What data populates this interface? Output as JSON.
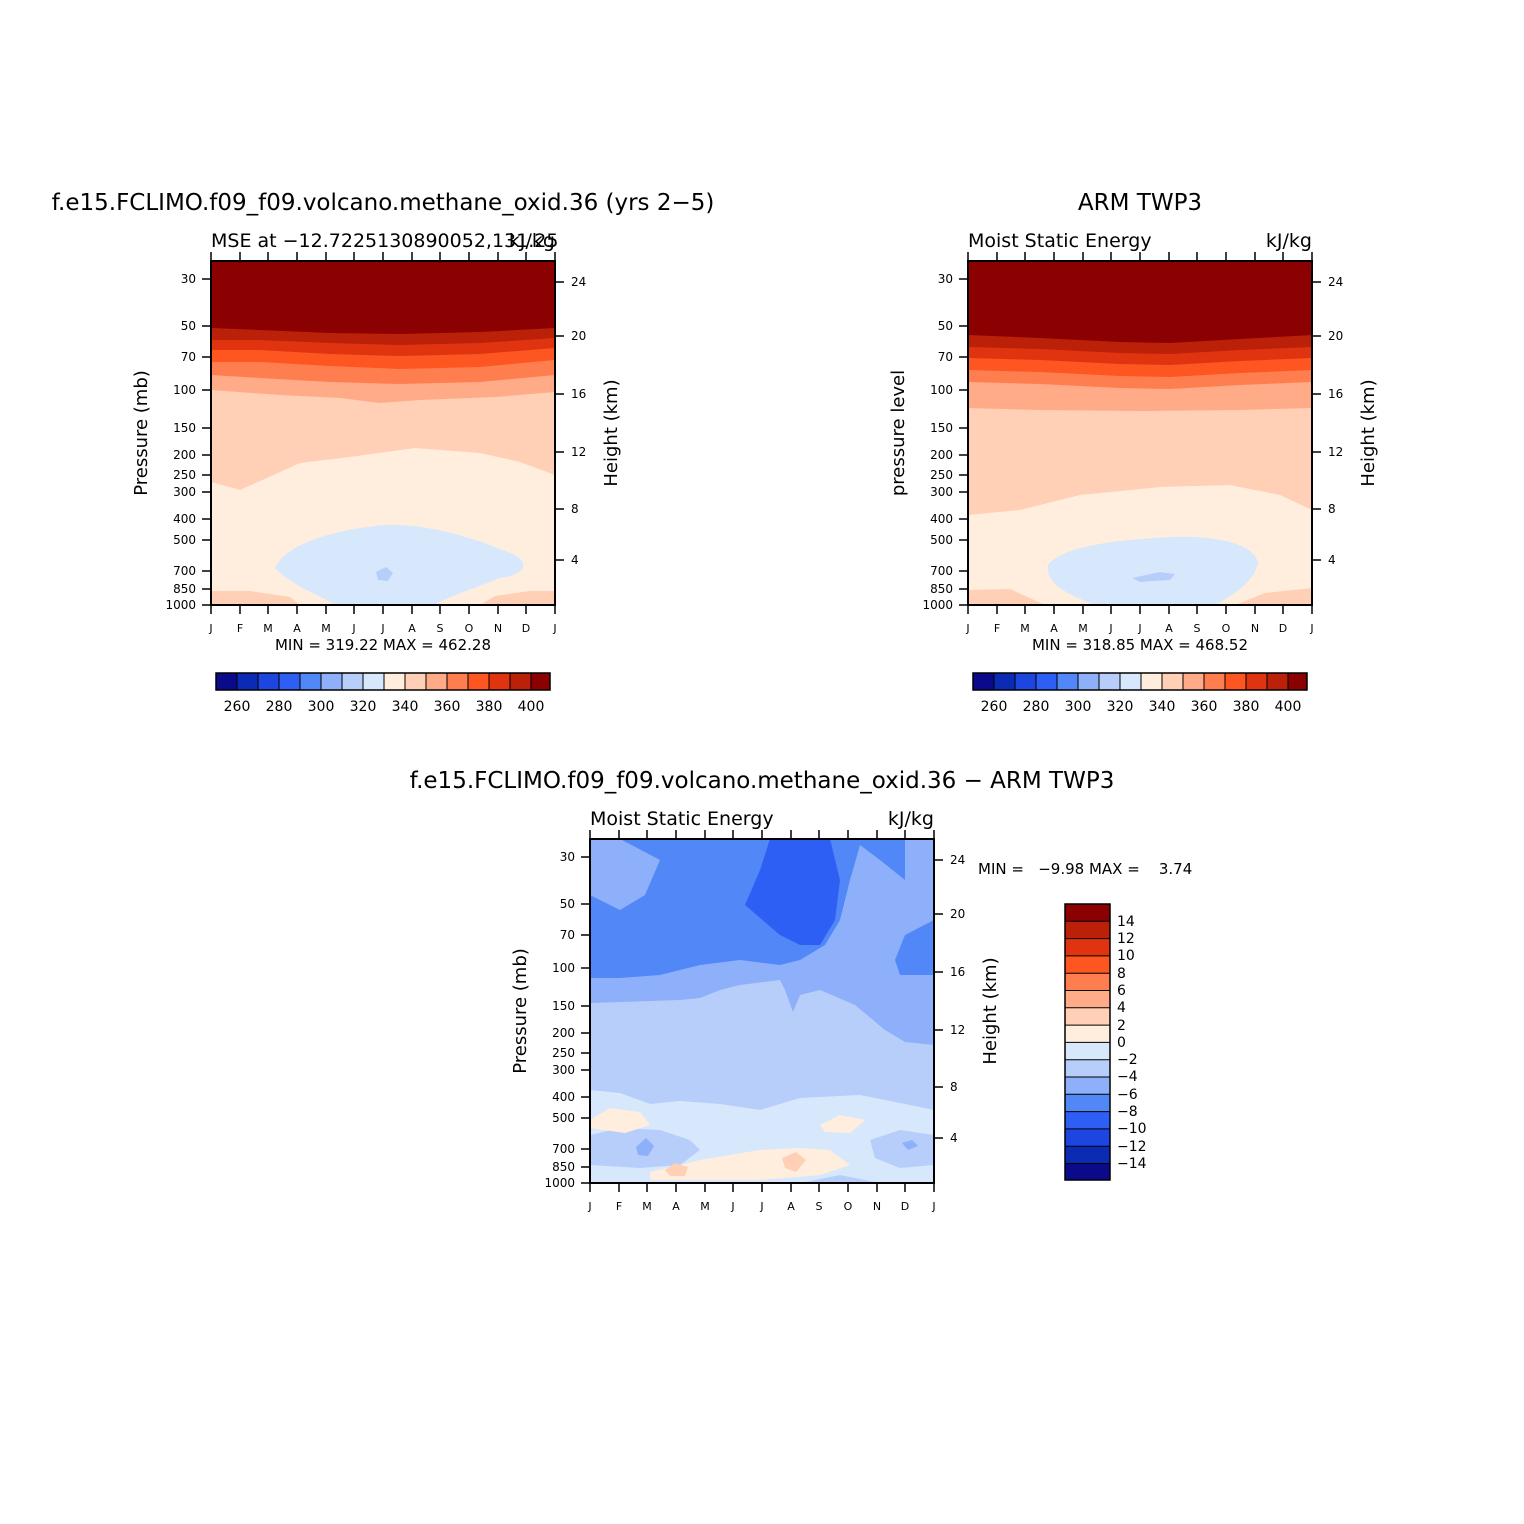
{
  "chart_data": [
    {
      "type": "heatmap",
      "title": "f.e15.FCLIMO.f09_f09.volcano.methane_oxid.36 (yrs 2−5)",
      "left_subtitle": "MSE at −12.7225130890052,131.25",
      "right_subtitle": "kJ/kg",
      "ylabel": "Pressure (mb)",
      "y2label": "Height (km)",
      "stats": "MIN = 319.22 MAX = 462.28",
      "x_ticks": [
        "J",
        "F",
        "M",
        "A",
        "M",
        "J",
        "J",
        "A",
        "S",
        "O",
        "N",
        "D",
        "J"
      ],
      "y_ticks": [
        "30",
        "50",
        "70",
        "100",
        "150",
        "200",
        "250",
        "300",
        "400",
        "500",
        "700",
        "850",
        "1000"
      ],
      "y2_ticks": [
        "24",
        "20",
        "16",
        "12",
        "8",
        "4"
      ],
      "colorbar": {
        "orientation": "horizontal",
        "labels": [
          "260",
          "280",
          "300",
          "320",
          "340",
          "360",
          "380",
          "400"
        ],
        "colors": [
          "#0a0a8a",
          "#0b2bb5",
          "#1d45e0",
          "#2e5ff5",
          "#5287f7",
          "#8eb0fa",
          "#b7cefb",
          "#d8e8fc",
          "#ffeedd",
          "#ffd0b5",
          "#ffab88",
          "#ff7e50",
          "#fd5620",
          "#e03410",
          "#bb2009",
          "#8b0000"
        ]
      }
    },
    {
      "type": "heatmap",
      "title": "ARM TWP3",
      "left_subtitle": "Moist Static Energy",
      "right_subtitle": "kJ/kg",
      "ylabel": "pressure level",
      "y2label": "Height (km)",
      "stats": "MIN = 318.85 MAX = 468.52",
      "x_ticks": [
        "J",
        "F",
        "M",
        "A",
        "M",
        "J",
        "J",
        "A",
        "S",
        "O",
        "N",
        "D",
        "J"
      ],
      "y_ticks": [
        "30",
        "50",
        "70",
        "100",
        "150",
        "200",
        "250",
        "300",
        "400",
        "500",
        "700",
        "850",
        "1000"
      ],
      "y2_ticks": [
        "24",
        "20",
        "16",
        "12",
        "8",
        "4"
      ],
      "colorbar": {
        "orientation": "horizontal",
        "labels": [
          "260",
          "280",
          "300",
          "320",
          "340",
          "360",
          "380",
          "400"
        ],
        "colors": [
          "#0a0a8a",
          "#0b2bb5",
          "#1d45e0",
          "#2e5ff5",
          "#5287f7",
          "#8eb0fa",
          "#b7cefb",
          "#d8e8fc",
          "#ffeedd",
          "#ffd0b5",
          "#ffab88",
          "#ff7e50",
          "#fd5620",
          "#e03410",
          "#bb2009",
          "#8b0000"
        ]
      }
    },
    {
      "type": "heatmap",
      "title": "f.e15.FCLIMO.f09_f09.volcano.methane_oxid.36 − ARM TWP3",
      "left_subtitle": "Moist Static Energy",
      "right_subtitle": "kJ/kg",
      "ylabel": "Pressure (mb)",
      "y2label": "Height (km)",
      "stats": "MIN =   −9.98 MAX =    3.74",
      "x_ticks": [
        "J",
        "F",
        "M",
        "A",
        "M",
        "J",
        "J",
        "A",
        "S",
        "O",
        "N",
        "D",
        "J"
      ],
      "y_ticks": [
        "30",
        "50",
        "70",
        "100",
        "150",
        "200",
        "250",
        "300",
        "400",
        "500",
        "700",
        "850",
        "1000"
      ],
      "y2_ticks": [
        "24",
        "20",
        "16",
        "12",
        "8",
        "4"
      ],
      "colorbar": {
        "orientation": "vertical",
        "labels": [
          "14",
          "12",
          "10",
          "8",
          "6",
          "4",
          "2",
          "0",
          "−2",
          "−4",
          "−6",
          "−8",
          "−10",
          "−12",
          "−14"
        ],
        "colors": [
          "#8b0000",
          "#bb2009",
          "#e03410",
          "#fd5620",
          "#ff7e50",
          "#ffab88",
          "#ffd0b5",
          "#ffeedd",
          "#d8e8fc",
          "#b7cefb",
          "#8eb0fa",
          "#5287f7",
          "#2e5ff5",
          "#1d45e0",
          "#0b2bb5"
        ]
      }
    }
  ]
}
